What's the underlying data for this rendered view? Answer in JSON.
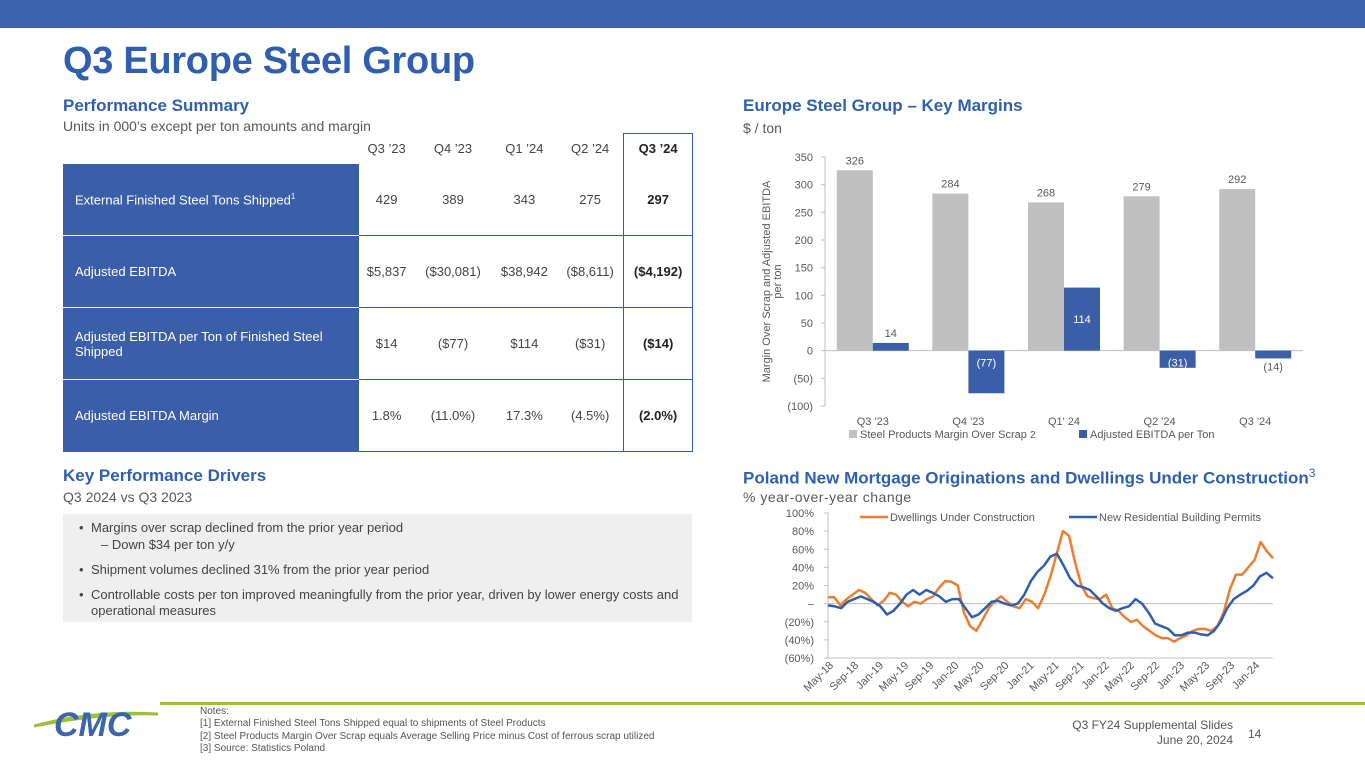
{
  "page": {
    "title": "Q3 Europe Steel Group",
    "slide_label": "Q3 FY24 Supplemental Slides",
    "slide_date": "June 20, 2024",
    "page_number": "14",
    "logo_text": "CMC"
  },
  "performance": {
    "title": "Performance Summary",
    "subtitle": "Units in 000’s except per ton amounts and margin",
    "columns": [
      "Q3 ’23",
      "Q4 ’23",
      "Q1 ’24",
      "Q2 ’24",
      "Q3 ’24"
    ],
    "rows": [
      {
        "label": "External Finished Steel Tons Shipped",
        "sup": "1",
        "values": [
          "429",
          "389",
          "343",
          "275",
          "297"
        ]
      },
      {
        "label": "Adjusted EBITDA",
        "sup": "",
        "values": [
          "$5,837",
          "($30,081)",
          "$38,942",
          "($8,611)",
          "($4,192)"
        ]
      },
      {
        "label": "Adjusted EBITDA per Ton of Finished Steel Shipped",
        "sup": "",
        "values": [
          "$14",
          "($77)",
          "$114",
          "($31)",
          "($14)"
        ]
      },
      {
        "label": "Adjusted EBITDA Margin",
        "sup": "",
        "values": [
          "1.8%",
          "(11.0%)",
          "17.3%",
          "(4.5%)",
          "(2.0%)"
        ]
      }
    ]
  },
  "drivers": {
    "title": "Key Performance Drivers",
    "subtitle": "Q3 2024 vs Q3 2023",
    "items": [
      {
        "text": "Margins over scrap declined from the prior year period",
        "sub": "–  Down $34 per ton y/y"
      },
      {
        "text": "Shipment volumes declined 31% from the prior year period",
        "sub": ""
      },
      {
        "text": "Controllable costs per ton improved meaningfully from the prior year, driven by lower energy costs and operational measures",
        "sub": ""
      }
    ]
  },
  "margins_section": {
    "title": "Europe Steel Group – Key Margins",
    "subtitle": "$ / ton"
  },
  "mortgage_section": {
    "title": "Poland New Mortgage Originations and Dwellings Under Construction",
    "title_sup": "3",
    "subtitle": "% year-over-year change"
  },
  "notes": {
    "heading": "Notes:",
    "lines": [
      "[1]  External Finished Steel Tons Shipped equal to shipments of Steel Products",
      "[2]  Steel Products Margin Over Scrap equals Average Selling Price minus Cost of ferrous scrap utilized",
      "[3]  Source: Statistics Poland"
    ]
  },
  "colors": {
    "brand_blue": "#2f5fae",
    "bar_gray": "#c0c0c0",
    "bar_blue": "#3b5ea9",
    "line_orange": "#ed7d31",
    "accent_green": "#9cbf3c"
  },
  "chart_data": [
    {
      "type": "bar",
      "categories": [
        "Q3 '23",
        "Q4 '23",
        "Q1' 24",
        "Q2 '24",
        "Q3 '24"
      ],
      "series": [
        {
          "name": "Steel Products Margin Over Scrap",
          "legend_sup": "2",
          "values": [
            326,
            284,
            268,
            279,
            292
          ],
          "labels": [
            "326",
            "284",
            "268",
            "279",
            "292"
          ]
        },
        {
          "name": "Adjusted EBITDA per Ton",
          "values": [
            14,
            -77,
            114,
            -31,
            -14
          ],
          "labels": [
            "14",
            "(77)",
            "114",
            "(31)",
            "(14)"
          ]
        }
      ],
      "ylabel": "Margin Over Scrap and Adjusted EBITDA per ton",
      "ylim": [
        -100,
        350
      ],
      "yticks": [
        -100,
        -50,
        0,
        50,
        100,
        150,
        200,
        250,
        300,
        350
      ],
      "ytick_labels": [
        "(100)",
        "(50)",
        "0",
        "50",
        "100",
        "150",
        "200",
        "250",
        "300",
        "350"
      ],
      "legend": "bottom"
    },
    {
      "type": "line",
      "x_tick_labels": [
        "May-18",
        "Sep-18",
        "Jan-19",
        "May-19",
        "Sep-19",
        "Jan-20",
        "May-20",
        "Sep-20",
        "Jan-21",
        "May-21",
        "Sep-21",
        "Jan-22",
        "May-22",
        "Sep-22",
        "Jan-23",
        "May-23",
        "Sep-23",
        "Jan-24"
      ],
      "x_start": "May-18",
      "x_end": "Apr-24",
      "series": [
        {
          "name": "Dwellings Under Construction",
          "values": [
            7,
            7,
            -2,
            5,
            10,
            15,
            12,
            5,
            -2,
            3,
            12,
            10,
            2,
            -3,
            2,
            0,
            5,
            8,
            18,
            25,
            24,
            20,
            -10,
            -25,
            -30,
            -18,
            -5,
            3,
            8,
            2,
            -3,
            -5,
            5,
            2,
            -5,
            10,
            30,
            55,
            80,
            75,
            45,
            20,
            8,
            6,
            5,
            10,
            -5,
            -8,
            -15,
            -20,
            -18,
            -25,
            -30,
            -35,
            -38,
            -38,
            -42,
            -38,
            -35,
            -30,
            -28,
            -28,
            -30,
            -25,
            -10,
            15,
            32,
            32,
            40,
            48,
            68,
            58,
            50
          ],
          "legend_position": "top-left"
        },
        {
          "name": "New Residential Building Permits",
          "values": [
            -2,
            -3,
            -5,
            2,
            5,
            8,
            5,
            2,
            -3,
            -12,
            -8,
            0,
            10,
            15,
            10,
            15,
            12,
            8,
            2,
            5,
            5,
            -5,
            -15,
            -12,
            -5,
            2,
            3,
            0,
            -2,
            0,
            10,
            25,
            35,
            42,
            52,
            55,
            42,
            28,
            20,
            18,
            15,
            8,
            0,
            -5,
            -8,
            -5,
            -3,
            5,
            0,
            -10,
            -22,
            -25,
            -28,
            -35,
            -35,
            -32,
            -32,
            -34,
            -35,
            -30,
            -20,
            -5,
            5,
            10,
            14,
            20,
            30,
            34,
            28
          ],
          "legend_position": "top-right"
        }
      ],
      "ylim": [
        -60,
        100
      ],
      "yticks": [
        -60,
        -40,
        -20,
        0,
        20,
        40,
        60,
        80,
        100
      ],
      "ytick_labels": [
        "(60%)",
        "(40%)",
        "(20%)",
        "–",
        "20%",
        "40%",
        "60%",
        "80%",
        "100%"
      ]
    }
  ]
}
